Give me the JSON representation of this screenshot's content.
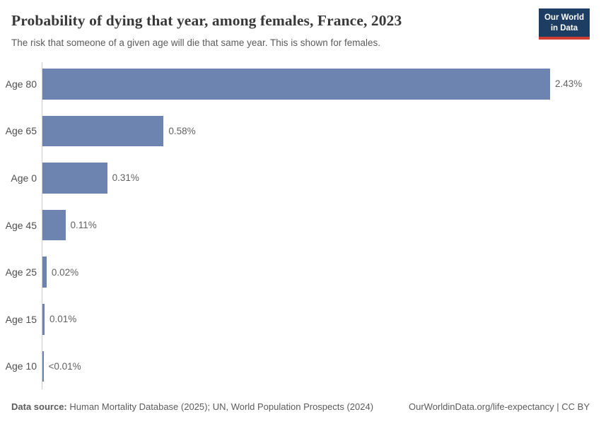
{
  "header": {
    "title": "Probability of dying that year, among females, France, 2023",
    "subtitle": "The risk that someone of a given age will die that same year. This is shown for females.",
    "logo": {
      "line1": "Our World",
      "line2": "in Data"
    }
  },
  "chart_data": {
    "type": "bar",
    "orientation": "horizontal",
    "title": "Probability of dying that year, among females, France, 2023",
    "categories": [
      "Age 80",
      "Age 65",
      "Age 0",
      "Age 45",
      "Age 25",
      "Age 15",
      "Age 10"
    ],
    "values": [
      2.43,
      0.58,
      0.31,
      0.11,
      0.02,
      0.01,
      0.005
    ],
    "value_labels": [
      "2.43%",
      "0.58%",
      "0.31%",
      "0.11%",
      "0.02%",
      "0.01%",
      "<0.01%"
    ],
    "unit": "%",
    "xlim": [
      0,
      2.43
    ],
    "grid": false,
    "legend": "none",
    "bar_color": "#6c84af"
  },
  "footer": {
    "datasource_label": "Data source:",
    "datasource_text": "Human Mortality Database (2025); UN, World Population Prospects (2024)",
    "license_text": "OurWorldinData.org/life-expectancy | CC BY"
  },
  "colors": {
    "bar": "#6c84af",
    "axis": "#cccccc",
    "logo_bg": "#1d3d63",
    "logo_accent": "#d13d33",
    "title_text": "#383838",
    "muted_text": "#5b5b5b"
  }
}
